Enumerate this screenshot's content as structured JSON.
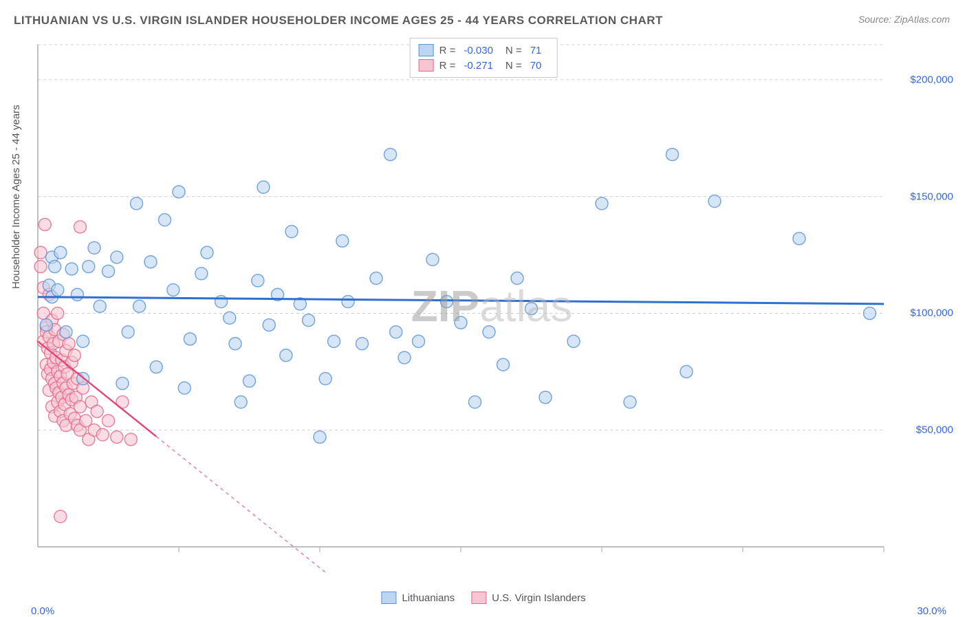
{
  "title": "LITHUANIAN VS U.S. VIRGIN ISLANDER HOUSEHOLDER INCOME AGES 25 - 44 YEARS CORRELATION CHART",
  "source": "Source: ZipAtlas.com",
  "ylabel": "Householder Income Ages 25 - 44 years",
  "watermark_a": "ZIP",
  "watermark_b": "atlas",
  "chart": {
    "type": "scatter",
    "background_color": "#ffffff",
    "grid_color": "#cccccc",
    "grid_dash": "4 4",
    "axis_color": "#aaaaaa",
    "tick_color": "#aaaaaa",
    "xlim": [
      0,
      30
    ],
    "ylim": [
      0,
      215000
    ],
    "x_tick_labels": {
      "min": "0.0%",
      "max": "30.0%"
    },
    "x_ticks_minor": [
      5,
      10,
      15,
      20,
      25,
      30
    ],
    "y_ticks": [
      {
        "v": 50000,
        "label": "$50,000"
      },
      {
        "v": 100000,
        "label": "$100,000"
      },
      {
        "v": 150000,
        "label": "$150,000"
      },
      {
        "v": 200000,
        "label": "$200,000"
      }
    ],
    "legend_stats": [
      {
        "swatch_fill": "#bcd5f2",
        "swatch_stroke": "#5a92d6",
        "R": "-0.030",
        "N": "71"
      },
      {
        "swatch_fill": "#f6c5d2",
        "swatch_stroke": "#e06a8a",
        "R": "-0.271",
        "N": "70"
      }
    ],
    "bottom_legend": [
      {
        "swatch_fill": "#bcd5f2",
        "swatch_stroke": "#5a92d6",
        "label": "Lithuanians"
      },
      {
        "swatch_fill": "#f6c5d2",
        "swatch_stroke": "#e06a8a",
        "label": "U.S. Virgin Islanders"
      }
    ],
    "marker_radius": 9,
    "marker_opacity": 0.6,
    "series": [
      {
        "name": "Lithuanians",
        "fill": "#bcd5f2",
        "stroke": "#5a92d6",
        "trend": {
          "m": -100,
          "b": 107000,
          "color": "#2f6fd0",
          "width": 3,
          "x0": 0,
          "x1": 30
        },
        "points": [
          [
            0.3,
            95000
          ],
          [
            0.4,
            112000
          ],
          [
            0.5,
            107000
          ],
          [
            0.5,
            124000
          ],
          [
            0.6,
            120000
          ],
          [
            0.7,
            110000
          ],
          [
            0.8,
            126000
          ],
          [
            1.0,
            92000
          ],
          [
            1.2,
            119000
          ],
          [
            1.4,
            108000
          ],
          [
            1.6,
            72000
          ],
          [
            1.6,
            88000
          ],
          [
            1.8,
            120000
          ],
          [
            2.0,
            128000
          ],
          [
            2.2,
            103000
          ],
          [
            2.5,
            118000
          ],
          [
            2.8,
            124000
          ],
          [
            3.0,
            70000
          ],
          [
            3.2,
            92000
          ],
          [
            3.5,
            147000
          ],
          [
            3.6,
            103000
          ],
          [
            4.0,
            122000
          ],
          [
            4.2,
            77000
          ],
          [
            4.5,
            140000
          ],
          [
            4.8,
            110000
          ],
          [
            5.0,
            152000
          ],
          [
            5.2,
            68000
          ],
          [
            5.4,
            89000
          ],
          [
            5.8,
            117000
          ],
          [
            6.0,
            126000
          ],
          [
            6.5,
            105000
          ],
          [
            6.8,
            98000
          ],
          [
            7.0,
            87000
          ],
          [
            7.2,
            62000
          ],
          [
            7.5,
            71000
          ],
          [
            7.8,
            114000
          ],
          [
            8.0,
            154000
          ],
          [
            8.2,
            95000
          ],
          [
            8.5,
            108000
          ],
          [
            8.8,
            82000
          ],
          [
            9.0,
            135000
          ],
          [
            9.3,
            104000
          ],
          [
            9.6,
            97000
          ],
          [
            10.0,
            47000
          ],
          [
            10.2,
            72000
          ],
          [
            10.5,
            88000
          ],
          [
            10.8,
            131000
          ],
          [
            11.0,
            105000
          ],
          [
            11.5,
            87000
          ],
          [
            12.0,
            115000
          ],
          [
            12.5,
            168000
          ],
          [
            12.7,
            92000
          ],
          [
            13.0,
            81000
          ],
          [
            13.5,
            88000
          ],
          [
            14.0,
            123000
          ],
          [
            14.5,
            105000
          ],
          [
            15.0,
            96000
          ],
          [
            15.5,
            62000
          ],
          [
            16.0,
            92000
          ],
          [
            16.5,
            78000
          ],
          [
            17.0,
            115000
          ],
          [
            17.5,
            102000
          ],
          [
            18.0,
            64000
          ],
          [
            19.0,
            88000
          ],
          [
            20.0,
            147000
          ],
          [
            21.0,
            62000
          ],
          [
            22.5,
            168000
          ],
          [
            23.0,
            75000
          ],
          [
            24.0,
            148000
          ],
          [
            27.0,
            132000
          ],
          [
            29.5,
            100000
          ]
        ]
      },
      {
        "name": "U.S. Virgin Islanders",
        "fill": "#f6c5d2",
        "stroke": "#e06a8a",
        "trend": {
          "m": -9700,
          "b": 88000,
          "color": "#e04a7a",
          "width": 2.5,
          "x0": 0,
          "x1": 4.2,
          "dash_after_x": 4.2,
          "dash_x1": 10.5
        },
        "points": [
          [
            0.1,
            120000
          ],
          [
            0.1,
            126000
          ],
          [
            0.2,
            111000
          ],
          [
            0.2,
            100000
          ],
          [
            0.2,
            88000
          ],
          [
            0.25,
            138000
          ],
          [
            0.3,
            94000
          ],
          [
            0.3,
            78000
          ],
          [
            0.3,
            92000
          ],
          [
            0.35,
            85000
          ],
          [
            0.35,
            74000
          ],
          [
            0.4,
            108000
          ],
          [
            0.4,
            90000
          ],
          [
            0.4,
            67000
          ],
          [
            0.45,
            83000
          ],
          [
            0.45,
            76000
          ],
          [
            0.5,
            97000
          ],
          [
            0.5,
            72000
          ],
          [
            0.5,
            60000
          ],
          [
            0.55,
            87000
          ],
          [
            0.55,
            79000
          ],
          [
            0.6,
            93000
          ],
          [
            0.6,
            70000
          ],
          [
            0.6,
            56000
          ],
          [
            0.65,
            81000
          ],
          [
            0.65,
            68000
          ],
          [
            0.7,
            100000
          ],
          [
            0.7,
            75000
          ],
          [
            0.7,
            62000
          ],
          [
            0.75,
            88000
          ],
          [
            0.75,
            66000
          ],
          [
            0.8,
            73000
          ],
          [
            0.8,
            58000
          ],
          [
            0.85,
            80000
          ],
          [
            0.85,
            64000
          ],
          [
            0.9,
            91000
          ],
          [
            0.9,
            70000
          ],
          [
            0.9,
            54000
          ],
          [
            0.95,
            77000
          ],
          [
            0.95,
            61000
          ],
          [
            1.0,
            84000
          ],
          [
            1.0,
            68000
          ],
          [
            1.0,
            52000
          ],
          [
            1.05,
            74000
          ],
          [
            1.1,
            87000
          ],
          [
            1.1,
            65000
          ],
          [
            1.15,
            57000
          ],
          [
            1.2,
            79000
          ],
          [
            1.2,
            63000
          ],
          [
            1.25,
            70000
          ],
          [
            1.3,
            55000
          ],
          [
            1.3,
            82000
          ],
          [
            1.35,
            64000
          ],
          [
            1.4,
            52000
          ],
          [
            1.4,
            72000
          ],
          [
            1.5,
            60000
          ],
          [
            1.5,
            50000
          ],
          [
            1.6,
            68000
          ],
          [
            1.7,
            54000
          ],
          [
            1.8,
            46000
          ],
          [
            1.9,
            62000
          ],
          [
            2.0,
            50000
          ],
          [
            2.1,
            58000
          ],
          [
            2.3,
            48000
          ],
          [
            2.5,
            54000
          ],
          [
            2.8,
            47000
          ],
          [
            3.0,
            62000
          ],
          [
            3.3,
            46000
          ],
          [
            0.8,
            13000
          ],
          [
            1.5,
            137000
          ]
        ]
      }
    ]
  }
}
